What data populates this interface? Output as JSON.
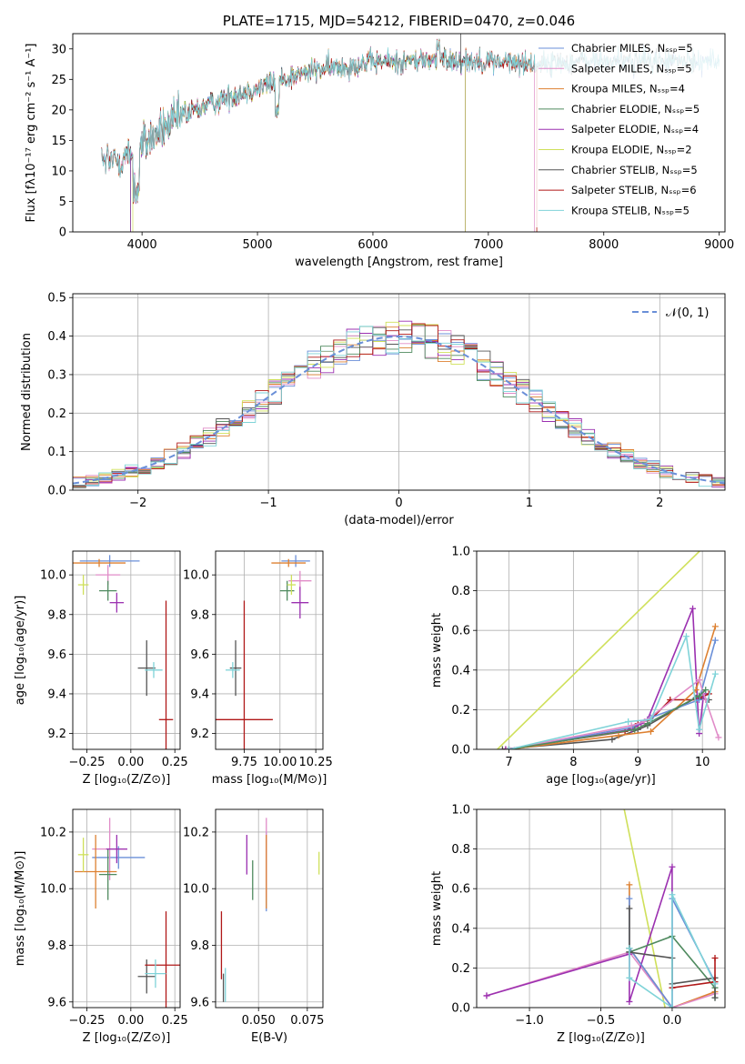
{
  "colors": {
    "chabrier_miles": "#6a8fd8",
    "salpeter_miles": "#e08cc8",
    "kroupa_miles": "#dd8030",
    "chabrier_elodie": "#4f8a5f",
    "salpeter_elodie": "#9b30b0",
    "kroupa_elodie": "#cfe05a",
    "chabrier_stelib": "#555555",
    "salpeter_stelib": "#b01818",
    "kroupa_stelib": "#7fd3d8",
    "normal": "#6a8fd8"
  },
  "chart_data": [
    {
      "id": "spectrum",
      "type": "line",
      "title": "PLATE=1715, MJD=54212, FIBERID=0470, z=0.046",
      "xlabel": "wavelength [Angstrom, rest frame]",
      "ylabel": "Flux [fλ10⁻¹⁷ erg cm⁻² s⁻¹ A⁻¹]",
      "xlim": [
        3400,
        9050
      ],
      "ylim": [
        0,
        32.5
      ],
      "xticks": [
        4000,
        5000,
        6000,
        7000,
        8000,
        9000
      ],
      "yticks": [
        0,
        5,
        10,
        15,
        20,
        25,
        30
      ],
      "grid": false,
      "legend_position": "upper-right",
      "series": [
        {
          "name": "Chabrier MILES, Nₛₛₚ=5",
          "color_key": "chabrier_miles",
          "range": [
            3650,
            9000
          ]
        },
        {
          "name": "Salpeter MILES, Nₛₛₚ=5",
          "color_key": "salpeter_miles",
          "range": [
            3650,
            7400
          ]
        },
        {
          "name": "Kroupa MILES, Nₛₛₚ=4",
          "color_key": "kroupa_miles",
          "range": [
            3650,
            7420
          ]
        },
        {
          "name": "Chabrier ELODIE, Nₛₛₚ=5",
          "color_key": "chabrier_elodie",
          "range": [
            3900,
            6800
          ]
        },
        {
          "name": "Salpeter ELODIE, Nₛₛₚ=4",
          "color_key": "salpeter_elodie",
          "range": [
            3900,
            6800
          ]
        },
        {
          "name": "Kroupa ELODIE, Nₛₛₚ=2",
          "color_key": "kroupa_elodie",
          "range": [
            3920,
            6800
          ]
        },
        {
          "name": "Chabrier STELIB, Nₛₛₚ=5",
          "color_key": "chabrier_stelib",
          "range": [
            3650,
            8800
          ]
        },
        {
          "name": "Salpeter STELIB, Nₛₛₚ=6",
          "color_key": "salpeter_stelib",
          "range": [
            3650,
            7420
          ]
        },
        {
          "name": "Kroupa STELIB, Nₛₛₚ=5",
          "color_key": "kroupa_stelib",
          "range": [
            3650,
            9000
          ]
        }
      ],
      "continuum": [
        [
          3650,
          11
        ],
        [
          3800,
          12
        ],
        [
          3950,
          13
        ],
        [
          4050,
          15
        ],
        [
          4200,
          17
        ],
        [
          4400,
          19.5
        ],
        [
          4600,
          21
        ],
        [
          4800,
          22.5
        ],
        [
          5000,
          23.5
        ],
        [
          5200,
          25
        ],
        [
          5500,
          26.5
        ],
        [
          5800,
          27.3
        ],
        [
          6000,
          27.8
        ],
        [
          6300,
          28
        ],
        [
          6600,
          28.3
        ],
        [
          7000,
          28
        ],
        [
          7400,
          27.5
        ],
        [
          7800,
          28
        ],
        [
          8200,
          28
        ],
        [
          8600,
          28
        ],
        [
          9000,
          28
        ]
      ]
    },
    {
      "id": "residuals",
      "type": "line",
      "xlabel": "(data-model)/error",
      "ylabel": "Normed distribution",
      "xlim": [
        -2.5,
        2.5
      ],
      "ylim": [
        0,
        0.51
      ],
      "xticks": [
        -2,
        -1,
        0,
        1,
        2
      ],
      "yticks": [
        0.0,
        0.1,
        0.2,
        0.3,
        0.4,
        0.5
      ],
      "grid": true,
      "legend_position": "upper-right",
      "legend": [
        "𝒩(0, 1)"
      ],
      "bin_width": 0.1
    },
    {
      "id": "age-z",
      "type": "scatter",
      "xlabel": "Z [log₁₀(Z/Z⊙)]",
      "ylabel": "age  [log₁₀(age/yr)]",
      "xlim": [
        -0.33,
        0.28
      ],
      "ylim": [
        9.12,
        10.12
      ],
      "xticks": [
        -0.25,
        0.0,
        0.25
      ],
      "yticks": [
        9.2,
        9.4,
        9.6,
        9.8,
        10.0
      ],
      "xtick_labels": [
        "−0.25",
        "0.00",
        "0.25"
      ],
      "grid": true,
      "points": [
        {
          "x": -0.12,
          "y": 10.07,
          "xerr": 0.17,
          "yerr": 0.03,
          "color_key": "chabrier_miles"
        },
        {
          "x": -0.13,
          "y": 10.0,
          "xerr": 0.07,
          "yerr": 0.05,
          "color_key": "salpeter_miles"
        },
        {
          "x": -0.18,
          "y": 10.06,
          "xerr": 0.15,
          "yerr": 0.02,
          "color_key": "kroupa_miles"
        },
        {
          "x": -0.13,
          "y": 9.92,
          "xerr": 0.05,
          "yerr": 0.05,
          "color_key": "chabrier_elodie"
        },
        {
          "x": -0.08,
          "y": 9.86,
          "xerr": 0.04,
          "yerr": 0.05,
          "color_key": "salpeter_elodie"
        },
        {
          "x": -0.27,
          "y": 9.95,
          "xerr": 0.03,
          "yerr": 0.05,
          "color_key": "kroupa_elodie"
        },
        {
          "x": 0.09,
          "y": 9.53,
          "xerr": 0.05,
          "yerr": 0.14,
          "color_key": "chabrier_stelib"
        },
        {
          "x": 0.2,
          "y": 9.27,
          "xerr": 0.04,
          "yerr": 0.6,
          "color_key": "salpeter_stelib"
        },
        {
          "x": 0.13,
          "y": 9.52,
          "xerr": 0.05,
          "yerr": 0.04,
          "color_key": "kroupa_stelib"
        }
      ]
    },
    {
      "id": "age-mass",
      "type": "scatter",
      "xlabel": "mass [log₁₀(M/M⊙)]",
      "xlim": [
        9.55,
        10.3
      ],
      "ylim": [
        9.12,
        10.12
      ],
      "xticks": [
        9.75,
        10.0,
        10.25
      ],
      "yticks": [
        9.2,
        9.4,
        9.6,
        9.8,
        10.0
      ],
      "xtick_labels": [
        "9.75",
        "10.00",
        "10.25"
      ],
      "grid": true,
      "points": [
        {
          "x": 10.11,
          "y": 10.07,
          "xerr": 0.1,
          "yerr": 0.03,
          "color_key": "chabrier_miles"
        },
        {
          "x": 10.14,
          "y": 9.97,
          "xerr": 0.08,
          "yerr": 0.05,
          "color_key": "salpeter_miles"
        },
        {
          "x": 10.06,
          "y": 10.06,
          "xerr": 0.12,
          "yerr": 0.02,
          "color_key": "kroupa_miles"
        },
        {
          "x": 10.05,
          "y": 9.92,
          "xerr": 0.05,
          "yerr": 0.05,
          "color_key": "chabrier_elodie"
        },
        {
          "x": 10.14,
          "y": 9.86,
          "xerr": 0.06,
          "yerr": 0.08,
          "color_key": "salpeter_elodie"
        },
        {
          "x": 10.08,
          "y": 9.95,
          "xerr": 0.03,
          "yerr": 0.05,
          "color_key": "kroupa_elodie"
        },
        {
          "x": 9.69,
          "y": 9.53,
          "xerr": 0.04,
          "yerr": 0.14,
          "color_key": "chabrier_stelib"
        },
        {
          "x": 9.75,
          "y": 9.27,
          "xerr": 0.2,
          "yerr": 0.6,
          "color_key": "salpeter_stelib"
        },
        {
          "x": 9.67,
          "y": 9.52,
          "xerr": 0.05,
          "yerr": 0.04,
          "color_key": "kroupa_stelib"
        }
      ]
    },
    {
      "id": "weight-age",
      "type": "line",
      "xlabel": "age  [log₁₀(age/yr)]",
      "ylabel": "mass weight",
      "xlim": [
        6.5,
        10.35
      ],
      "ylim": [
        0,
        1.0
      ],
      "xticks": [
        7,
        8,
        9,
        10
      ],
      "yticks": [
        0.0,
        0.2,
        0.4,
        0.6,
        0.8,
        1.0
      ],
      "grid": true,
      "series": [
        {
          "color_key": "kroupa_elodie",
          "x": [
            6.35,
            10.02
          ],
          "y": [
            -0.15,
            1.02
          ]
        },
        {
          "color_key": "chabrier_stelib",
          "x": [
            6.9,
            8.6,
            9.0,
            9.15,
            9.9,
            10.1
          ],
          "y": [
            0.0,
            0.05,
            0.1,
            0.12,
            0.26,
            0.25
          ]
        },
        {
          "color_key": "salpeter_stelib",
          "x": [
            6.95,
            8.8,
            9.0,
            9.2,
            9.5,
            9.9,
            10.1
          ],
          "y": [
            0.0,
            0.09,
            0.13,
            0.15,
            0.25,
            0.25,
            0.28
          ]
        },
        {
          "color_key": "salpeter_elodie",
          "x": [
            6.95,
            8.9,
            9.05,
            9.15,
            9.85,
            9.95,
            10.02
          ],
          "y": [
            0.0,
            0.1,
            0.13,
            0.15,
            0.71,
            0.08,
            0.28
          ]
        },
        {
          "color_key": "kroupa_miles",
          "x": [
            7.0,
            8.7,
            9.2,
            9.9,
            10.2
          ],
          "y": [
            0.0,
            0.07,
            0.09,
            0.3,
            0.62
          ]
        },
        {
          "color_key": "chabrier_miles",
          "x": [
            7.0,
            8.9,
            9.2,
            9.95,
            10.2
          ],
          "y": [
            0.0,
            0.11,
            0.16,
            0.25,
            0.55
          ]
        },
        {
          "color_key": "salpeter_miles",
          "x": [
            7.0,
            8.9,
            9.1,
            9.95,
            10.05,
            10.25
          ],
          "y": [
            0.0,
            0.12,
            0.14,
            0.35,
            0.25,
            0.06
          ]
        },
        {
          "color_key": "chabrier_elodie",
          "x": [
            7.0,
            8.95,
            9.15,
            9.95,
            10.05
          ],
          "y": [
            0.0,
            0.1,
            0.13,
            0.27,
            0.3
          ]
        },
        {
          "color_key": "kroupa_stelib",
          "x": [
            7.0,
            8.85,
            9.2,
            9.75,
            9.95,
            10.2
          ],
          "y": [
            0.0,
            0.14,
            0.15,
            0.57,
            0.1,
            0.38
          ]
        }
      ]
    },
    {
      "id": "mass-z",
      "type": "scatter",
      "xlabel": "Z [log₁₀(Z/Z⊙)]",
      "ylabel": "mass [log₁₀(M/M⊙)]",
      "xlim": [
        -0.33,
        0.28
      ],
      "ylim": [
        9.58,
        10.28
      ],
      "xticks": [
        -0.25,
        0.0,
        0.25
      ],
      "yticks": [
        9.6,
        9.8,
        10.0,
        10.2
      ],
      "xtick_labels": [
        "−0.25",
        "0.00",
        "0.25"
      ],
      "grid": true,
      "points": [
        {
          "x": -0.07,
          "y": 10.11,
          "xerr": 0.15,
          "yerr": 0.04,
          "color_key": "chabrier_miles"
        },
        {
          "x": -0.12,
          "y": 10.14,
          "xerr": 0.1,
          "yerr": 0.11,
          "color_key": "salpeter_miles"
        },
        {
          "x": -0.2,
          "y": 10.06,
          "xerr": 0.12,
          "yerr": 0.13,
          "color_key": "kroupa_miles"
        },
        {
          "x": -0.13,
          "y": 10.05,
          "xerr": 0.05,
          "yerr": 0.09,
          "color_key": "chabrier_elodie"
        },
        {
          "x": -0.08,
          "y": 10.14,
          "xerr": 0.06,
          "yerr": 0.05,
          "color_key": "salpeter_elodie"
        },
        {
          "x": -0.27,
          "y": 10.12,
          "xerr": 0.03,
          "yerr": 0.06,
          "color_key": "kroupa_elodie"
        },
        {
          "x": 0.09,
          "y": 9.69,
          "xerr": 0.05,
          "yerr": 0.06,
          "color_key": "chabrier_stelib"
        },
        {
          "x": 0.2,
          "y": 9.73,
          "xerr": 0.12,
          "yerr": 0.19,
          "color_key": "salpeter_stelib"
        },
        {
          "x": 0.14,
          "y": 9.7,
          "xerr": 0.06,
          "yerr": 0.05,
          "color_key": "kroupa_stelib"
        }
      ]
    },
    {
      "id": "mass-ebv",
      "type": "scatter",
      "xlabel": "E(B-V)",
      "xlim": [
        0.028,
        0.083
      ],
      "ylim": [
        9.58,
        10.28
      ],
      "xticks": [
        0.05,
        0.075
      ],
      "yticks": [
        9.6,
        9.8,
        10.0,
        10.2
      ],
      "xtick_labels": [
        "0.050",
        "0.075"
      ],
      "grid": true,
      "points": [
        {
          "x": 0.054,
          "y": 10.06,
          "yerr": 0.14,
          "color_key": "chabrier_miles"
        },
        {
          "x": 0.054,
          "y": 10.11,
          "yerr": 0.14,
          "color_key": "salpeter_miles"
        },
        {
          "x": 0.054,
          "y": 10.06,
          "yerr": 0.13,
          "color_key": "kroupa_miles"
        },
        {
          "x": 0.047,
          "y": 10.03,
          "yerr": 0.07,
          "color_key": "chabrier_elodie"
        },
        {
          "x": 0.044,
          "y": 10.12,
          "yerr": 0.07,
          "color_key": "salpeter_elodie"
        },
        {
          "x": 0.081,
          "y": 10.09,
          "yerr": 0.04,
          "color_key": "kroupa_elodie"
        },
        {
          "x": 0.032,
          "y": 9.65,
          "yerr": 0.05,
          "color_key": "chabrier_stelib"
        },
        {
          "x": 0.031,
          "y": 9.8,
          "yerr": 0.12,
          "color_key": "salpeter_stelib"
        },
        {
          "x": 0.033,
          "y": 9.66,
          "yerr": 0.06,
          "color_key": "kroupa_stelib"
        }
      ]
    },
    {
      "id": "weight-z",
      "type": "line",
      "xlabel": "Z [log₁₀(Z/Z⊙)]",
      "ylabel": "mass weight",
      "xlim": [
        -1.37,
        0.37
      ],
      "ylim": [
        0,
        1.0
      ],
      "xticks": [
        -1.0,
        -0.5,
        0.0
      ],
      "yticks": [
        0.0,
        0.2,
        0.4,
        0.6,
        0.8,
        1.0
      ],
      "xtick_labels": [
        "−1.0",
        "−0.5",
        "0.0"
      ],
      "grid": true,
      "series": [
        {
          "color_key": "kroupa_elodie",
          "x": [
            -0.35,
            -0.05
          ],
          "y": [
            1.05,
            0.0
          ]
        },
        {
          "color_key": "kroupa_miles",
          "x": [
            -0.3,
            -0.3,
            0.0,
            0.3
          ],
          "y": [
            0.62,
            0.3,
            0.0,
            0.08
          ]
        },
        {
          "color_key": "salpeter_miles",
          "x": [
            -1.3,
            -0.3,
            0.0,
            0.3
          ],
          "y": [
            0.06,
            0.28,
            0.0,
            0.07
          ]
        },
        {
          "color_key": "salpeter_elodie",
          "x": [
            -1.3,
            -0.3,
            -0.3,
            0.0,
            0.0
          ],
          "y": [
            0.06,
            0.27,
            0.03,
            0.71,
            0.0
          ]
        },
        {
          "color_key": "chabrier_miles",
          "x": [
            -0.3,
            -0.3,
            0.0,
            0.0,
            0.3
          ],
          "y": [
            0.55,
            0.3,
            0.0,
            0.55,
            0.13
          ]
        },
        {
          "color_key": "chabrier_elodie",
          "x": [
            -0.3,
            -0.3,
            0.0,
            0.3,
            0.3
          ],
          "y": [
            0.3,
            0.28,
            0.36,
            0.1,
            0.05
          ]
        },
        {
          "color_key": "chabrier_stelib",
          "x": [
            -0.3,
            -0.3,
            0.0,
            0.0,
            0.3,
            0.3
          ],
          "y": [
            0.5,
            0.28,
            0.25,
            0.12,
            0.15,
            0.05
          ]
        },
        {
          "color_key": "salpeter_stelib",
          "x": [
            0.0,
            0.3,
            0.3
          ],
          "y": [
            0.1,
            0.13,
            0.25
          ]
        },
        {
          "color_key": "kroupa_stelib",
          "x": [
            -0.3,
            -0.3,
            0.0,
            0.0,
            0.3
          ],
          "y": [
            0.3,
            0.15,
            0.0,
            0.57,
            0.12
          ]
        }
      ]
    }
  ]
}
